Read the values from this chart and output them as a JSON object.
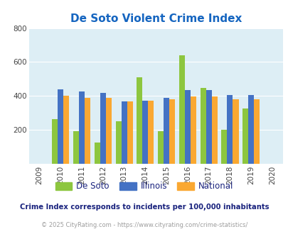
{
  "title": "De Soto Violent Crime Index",
  "years": [
    2010,
    2011,
    2012,
    2013,
    2014,
    2015,
    2016,
    2017,
    2018,
    2019
  ],
  "desoto": [
    265,
    193,
    125,
    252,
    510,
    192,
    641,
    449,
    200,
    325
  ],
  "illinois": [
    438,
    427,
    416,
    369,
    373,
    389,
    435,
    436,
    405,
    405
  ],
  "national": [
    403,
    389,
    388,
    368,
    372,
    381,
    398,
    399,
    382,
    379
  ],
  "bar_width": 0.27,
  "colors": {
    "desoto": "#8dc63f",
    "illinois": "#4472c4",
    "national": "#faa832"
  },
  "bg_color": "#ddeef5",
  "ylim": [
    0,
    800
  ],
  "yticks": [
    0,
    200,
    400,
    600,
    800
  ],
  "xlabel_years_full": [
    2009,
    2010,
    2011,
    2012,
    2013,
    2014,
    2015,
    2016,
    2017,
    2018,
    2019,
    2020
  ],
  "title_color": "#1565c0",
  "subtitle": "Crime Index corresponds to incidents per 100,000 inhabitants",
  "subtitle_color": "#1a237e",
  "footer": "© 2025 CityRating.com - https://www.cityrating.com/crime-statistics/",
  "footer_color": "#9e9e9e"
}
